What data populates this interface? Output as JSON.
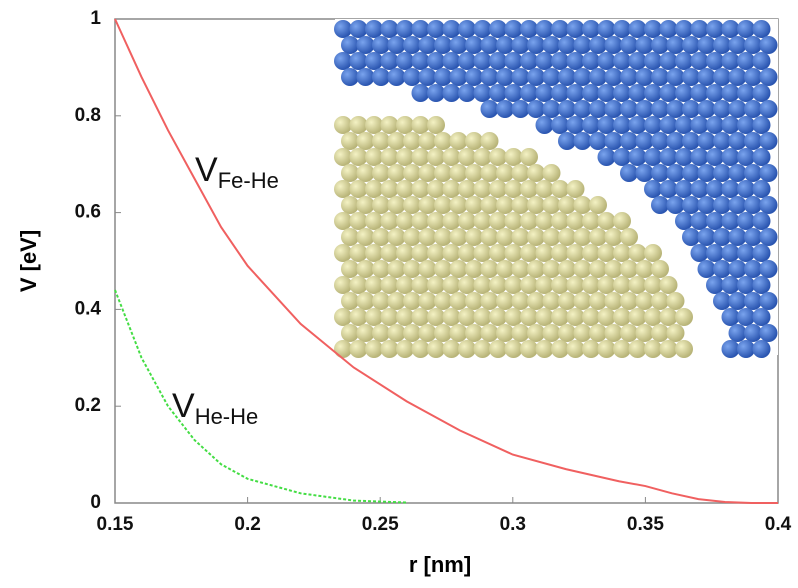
{
  "chart_data": {
    "type": "line",
    "xlabel": "r [nm]",
    "ylabel": "V [eV]",
    "x": [
      0.15,
      0.16,
      0.17,
      0.18,
      0.19,
      0.2,
      0.22,
      0.24,
      0.26,
      0.28,
      0.3,
      0.32,
      0.34,
      0.35,
      0.36,
      0.37,
      0.38,
      0.39,
      0.4
    ],
    "series": [
      {
        "color": "#f06060",
        "values": [
          1.0,
          0.88,
          0.77,
          0.67,
          0.57,
          0.49,
          0.37,
          0.28,
          0.21,
          0.15,
          0.1,
          0.07,
          0.045,
          0.035,
          0.02,
          0.008,
          0.002,
          0,
          0
        ]
      },
      {
        "color": "#44dd44",
        "dashed": true,
        "values": [
          0.44,
          0.3,
          0.2,
          0.13,
          0.08,
          0.05,
          0.02,
          0.005,
          0.001,
          null,
          null,
          null,
          null,
          null,
          null,
          null,
          null,
          null,
          null
        ]
      }
    ],
    "annotations": [
      {
        "text": "V",
        "sub": "Fe-He"
      },
      {
        "text": "V",
        "sub": "He-He"
      }
    ],
    "xlim": [
      0.15,
      0.4
    ],
    "xticks": [
      0.15,
      0.2,
      0.25,
      0.3,
      0.35,
      0.4
    ],
    "ylim": [
      0,
      1
    ],
    "yticks": [
      0,
      0.2,
      0.4,
      0.6,
      0.8,
      1
    ]
  }
}
